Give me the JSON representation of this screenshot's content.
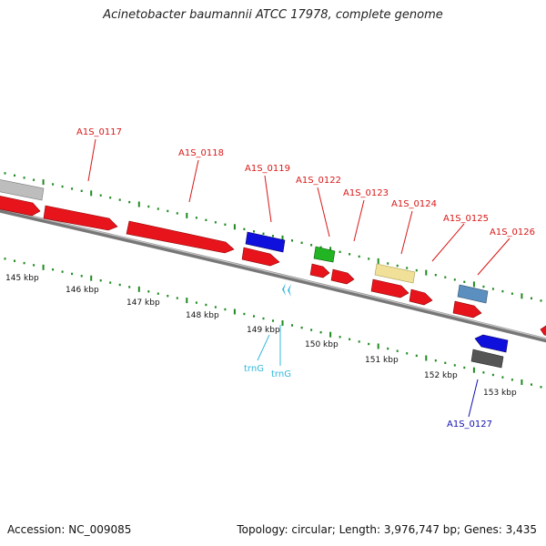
{
  "title": "Acinetobacter baumannii ATCC 17978, complete genome",
  "footer": {
    "accession": "Accession: NC_009085",
    "summary": "Topology: circular; Length: 3,976,747 bp; Genes: 3,435"
  },
  "colors": {
    "cds": "#e8141c",
    "blue": "#1010dd",
    "green": "#22b422",
    "yellow": "#f0e098",
    "steel": "#5b8fbf",
    "gray": "#bbbbbb",
    "darkgray": "#555555",
    "trna": "#33b8dd",
    "tick": "#1f8a1f",
    "label_red": "#d81818",
    "label_blue": "#1010b0",
    "label_cyan": "#33b8dd"
  },
  "kbp_labels": [
    "145 kbp",
    "146 kbp",
    "147 kbp",
    "148 kbp",
    "149 kbp",
    "150 kbp",
    "151 kbp",
    "152 kbp",
    "153 kbp"
  ],
  "gene_labels": [
    "A1S_0117",
    "A1S_0118",
    "A1S_0119",
    "A1S_0122",
    "A1S_0123",
    "A1S_0124",
    "A1S_0125",
    "A1S_0126",
    "A1S_0127"
  ],
  "trna_labels": [
    "trnG",
    "trnG"
  ]
}
